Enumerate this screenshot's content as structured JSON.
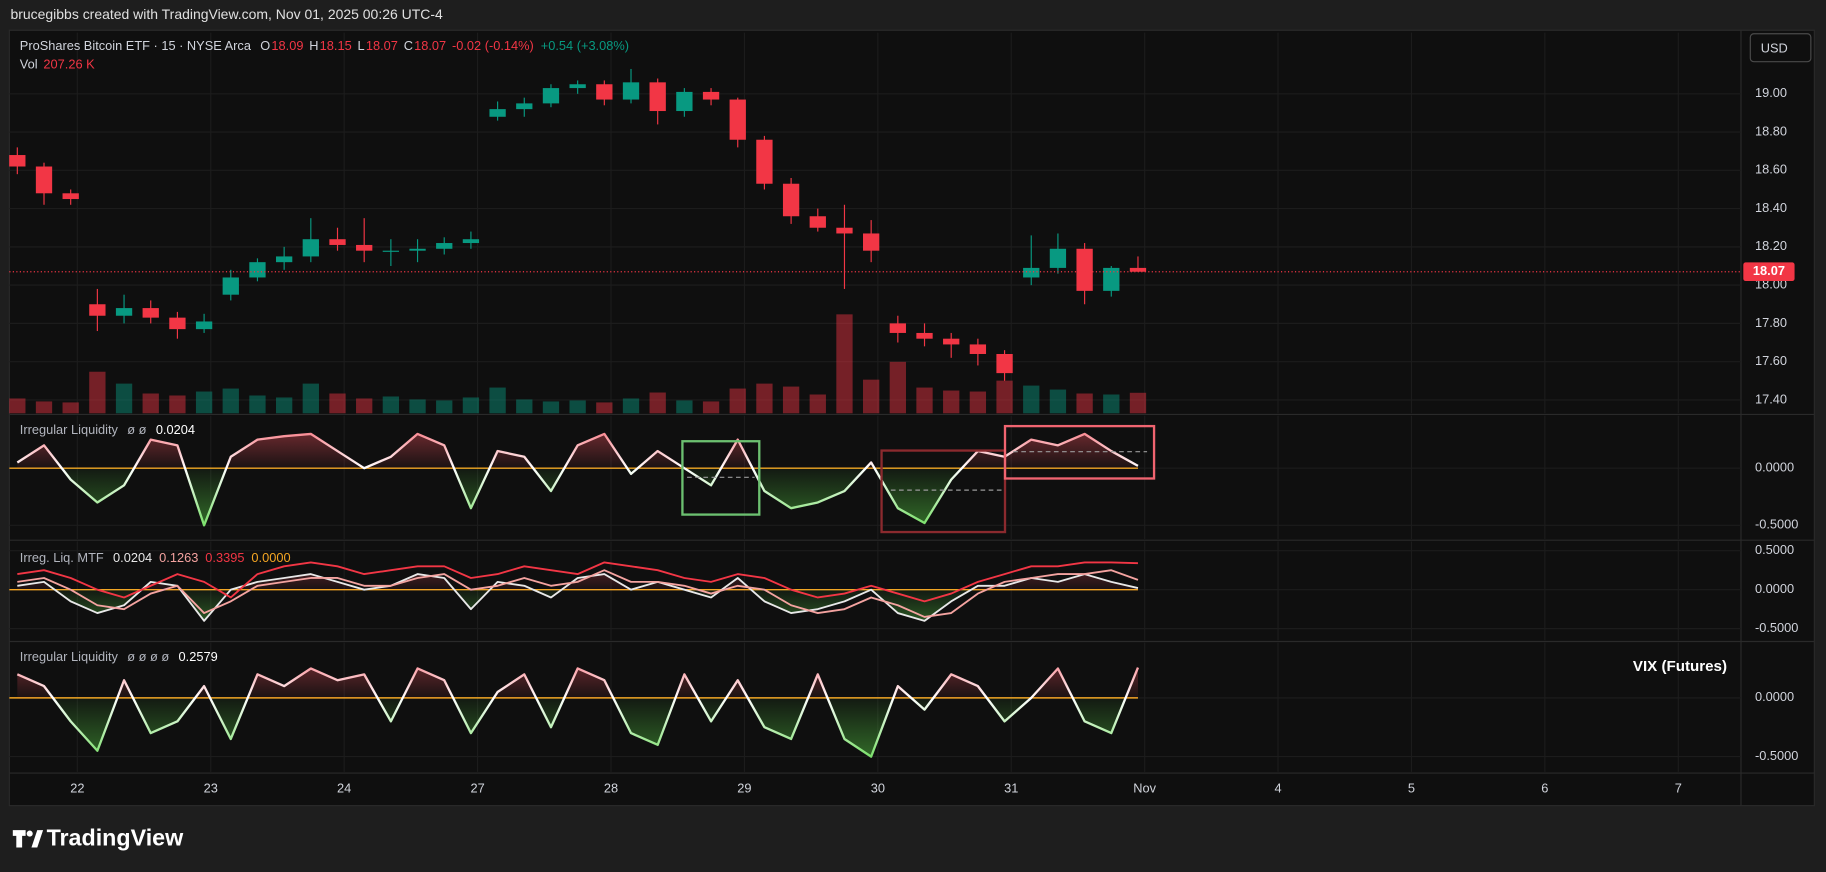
{
  "header": "brucegibbs created with TradingView.com, Nov 01, 2025 00:26 UTC-4",
  "currency_button": "USD",
  "footer_logo": "TradingView",
  "chart_data": [
    {
      "type": "candlestick",
      "title": "ProShares Bitcoin ETF · 15 · NYSE Arca",
      "ohlc_letters": [
        "O",
        "H",
        "L",
        "C"
      ],
      "change": "-0.02 (-0.14%)",
      "extended_change": "+0.54 (+3.08%)",
      "up_color": "#089981",
      "down_color": "#f23645",
      "grid": true,
      "last_price_line": true,
      "xlim": [
        -0.51,
        12.47
      ],
      "xticks": [
        {
          "value": 0,
          "label": "22"
        },
        {
          "value": 1,
          "label": "23"
        },
        {
          "value": 2,
          "label": "24"
        },
        {
          "value": 3,
          "label": "27"
        },
        {
          "value": 4,
          "label": "28"
        },
        {
          "value": 5,
          "label": "29"
        },
        {
          "value": 6,
          "label": "30"
        },
        {
          "value": 7,
          "label": "31"
        },
        {
          "value": 8,
          "label": "Nov"
        },
        {
          "value": 9,
          "label": "4"
        },
        {
          "value": 10,
          "label": "5"
        },
        {
          "value": 11,
          "label": "6"
        },
        {
          "value": 12,
          "label": "7"
        }
      ],
      "ylim": [
        17.33,
        19.32
      ],
      "yticks": [
        {
          "value": 17.4,
          "label": "17.40"
        },
        {
          "value": 17.6,
          "label": "17.60"
        },
        {
          "value": 17.8,
          "label": "17.80"
        },
        {
          "value": 18.0,
          "label": "18.00"
        },
        {
          "value": 18.2,
          "label": "18.20"
        },
        {
          "value": 18.4,
          "label": "18.40"
        },
        {
          "value": 18.6,
          "label": "18.60"
        },
        {
          "value": 18.8,
          "label": "18.80"
        },
        {
          "value": 19.0,
          "label": "19.00"
        }
      ],
      "x": [
        -0.45,
        -0.25,
        -0.05,
        0.15,
        0.35,
        0.55,
        0.75,
        0.95,
        1.15,
        1.35,
        1.55,
        1.75,
        1.95,
        2.15,
        2.35,
        2.55,
        2.75,
        2.95,
        3.15,
        3.35,
        3.55,
        3.75,
        3.95,
        4.15,
        4.35,
        4.55,
        4.75,
        4.95,
        5.15,
        5.35,
        5.55,
        5.75,
        5.95,
        6.15,
        6.35,
        6.55,
        6.75,
        6.95,
        7.15,
        7.35,
        7.55,
        7.75,
        7.95
      ],
      "open": [
        18.68,
        18.62,
        18.48,
        17.9,
        17.84,
        17.88,
        17.83,
        17.77,
        17.95,
        18.04,
        18.12,
        18.15,
        18.24,
        18.21,
        18.18,
        18.18,
        18.19,
        18.22,
        18.88,
        18.92,
        18.95,
        19.03,
        19.05,
        18.97,
        19.06,
        18.91,
        19.01,
        18.97,
        18.76,
        18.53,
        18.36,
        18.3,
        18.27,
        17.8,
        17.75,
        17.72,
        17.69,
        17.64,
        18.04,
        18.09,
        18.19,
        17.97,
        18.09
      ],
      "high": [
        18.72,
        18.64,
        18.5,
        17.98,
        17.95,
        17.92,
        17.86,
        17.85,
        18.08,
        18.14,
        18.2,
        18.35,
        18.3,
        18.35,
        18.24,
        18.24,
        18.25,
        18.28,
        18.96,
        18.98,
        19.05,
        19.07,
        19.07,
        19.13,
        19.08,
        19.03,
        19.03,
        18.98,
        18.78,
        18.56,
        18.4,
        18.42,
        18.34,
        17.84,
        17.8,
        17.75,
        17.72,
        17.66,
        18.26,
        18.27,
        18.22,
        18.1,
        18.15
      ],
      "low": [
        18.58,
        18.42,
        18.42,
        17.76,
        17.8,
        17.8,
        17.72,
        17.75,
        17.92,
        18.02,
        18.08,
        18.12,
        18.18,
        18.12,
        18.1,
        18.12,
        18.16,
        18.19,
        18.86,
        18.88,
        18.93,
        19.0,
        18.94,
        18.95,
        18.84,
        18.88,
        18.94,
        18.72,
        18.5,
        18.32,
        18.28,
        17.98,
        18.12,
        17.7,
        17.68,
        17.62,
        17.58,
        17.5,
        18.0,
        18.06,
        17.9,
        17.94,
        18.07
      ],
      "close": [
        18.62,
        18.48,
        18.45,
        17.84,
        17.88,
        17.83,
        17.77,
        17.81,
        18.04,
        18.12,
        18.15,
        18.24,
        18.21,
        18.18,
        18.18,
        18.19,
        18.22,
        18.24,
        18.92,
        18.95,
        19.03,
        19.05,
        18.97,
        19.06,
        18.91,
        19.01,
        18.97,
        18.76,
        18.53,
        18.36,
        18.3,
        18.27,
        18.18,
        17.75,
        17.72,
        17.69,
        17.64,
        17.54,
        18.09,
        18.19,
        17.97,
        18.09,
        18.07
      ],
      "volume": {
        "label": "Vol",
        "last_label": "207.26 K",
        "values": [
          150,
          120,
          110,
          420,
          300,
          200,
          180,
          220,
          250,
          180,
          160,
          300,
          200,
          150,
          170,
          140,
          130,
          160,
          260,
          140,
          120,
          130,
          110,
          150,
          210,
          130,
          120,
          250,
          300,
          270,
          190,
          1000,
          340,
          520,
          260,
          230,
          220,
          330,
          280,
          240,
          200,
          190,
          207.26
        ]
      }
    },
    {
      "type": "line",
      "title": "Irregular Liquidity",
      "inputs": "ø ø",
      "pos_color": "#f7525f",
      "neg_color": "#5ad846",
      "grid": true,
      "baseline": {
        "value": 0,
        "color": "#f5a623"
      },
      "ylim": [
        -0.62,
        0.46
      ],
      "yticks": [
        {
          "value": -0.5,
          "label": "-0.5000"
        },
        {
          "value": 0,
          "label": "0.0000"
        }
      ],
      "x": [
        -0.45,
        -0.25,
        -0.05,
        0.15,
        0.35,
        0.55,
        0.75,
        0.95,
        1.15,
        1.35,
        1.55,
        1.75,
        1.95,
        2.15,
        2.35,
        2.55,
        2.75,
        2.95,
        3.15,
        3.35,
        3.55,
        3.75,
        3.95,
        4.15,
        4.35,
        4.55,
        4.75,
        4.95,
        5.15,
        5.35,
        5.55,
        5.75,
        5.95,
        6.15,
        6.35,
        6.55,
        6.75,
        6.95,
        7.15,
        7.35,
        7.55,
        7.75,
        7.95
      ],
      "values": [
        0.05,
        0.2,
        -0.1,
        -0.3,
        -0.15,
        0.25,
        0.2,
        -0.5,
        0.1,
        0.25,
        0.28,
        0.3,
        0.15,
        0,
        0.1,
        0.3,
        0.2,
        -0.35,
        0.15,
        0.1,
        -0.2,
        0.2,
        0.3,
        -0.05,
        0.15,
        0,
        -0.15,
        0.25,
        -0.2,
        -0.35,
        -0.3,
        -0.2,
        0.05,
        -0.35,
        -0.48,
        -0.1,
        0.15,
        0.1,
        0.25,
        0.2,
        0.3,
        0.15,
        0.0204
      ]
    },
    {
      "type": "multi-line",
      "title": "Irreg. Liq. MTF",
      "pos_color": "#f7525f",
      "neg_color": "#5ad846",
      "grid": true,
      "baseline": {
        "value": 0,
        "label": "0.0000",
        "color": "#f5a623"
      },
      "ylim": [
        -0.65,
        0.62
      ],
      "yticks": [
        {
          "value": -0.5,
          "label": "-0.5000"
        },
        {
          "value": 0,
          "label": "0.0000"
        },
        {
          "value": 0.5,
          "label": "0.5000"
        }
      ],
      "x": [
        -0.45,
        -0.25,
        -0.05,
        0.15,
        0.35,
        0.55,
        0.75,
        0.95,
        1.15,
        1.35,
        1.55,
        1.75,
        1.95,
        2.15,
        2.35,
        2.55,
        2.75,
        2.95,
        3.15,
        3.35,
        3.55,
        3.75,
        3.95,
        4.15,
        4.35,
        4.55,
        4.75,
        4.95,
        5.15,
        5.35,
        5.55,
        5.75,
        5.95,
        6.15,
        6.35,
        6.55,
        6.75,
        6.95,
        7.15,
        7.35,
        7.55,
        7.75,
        7.95
      ],
      "series": [
        {
          "color": "#e8e8e8",
          "values": [
            0.05,
            0.1,
            -0.15,
            -0.3,
            -0.2,
            0.1,
            0.05,
            -0.4,
            0,
            0.1,
            0.15,
            0.2,
            0.1,
            0,
            0.05,
            0.2,
            0.15,
            -0.25,
            0.1,
            0.05,
            -0.1,
            0.15,
            0.2,
            0,
            0.1,
            0,
            -0.1,
            0.15,
            -0.15,
            -0.3,
            -0.25,
            -0.15,
            0,
            -0.3,
            -0.4,
            -0.15,
            0.05,
            0.05,
            0.15,
            0.1,
            0.2,
            0.1,
            0.0204
          ]
        },
        {
          "color": "#f4a3a0",
          "values": [
            0.1,
            0.15,
            0,
            -0.2,
            -0.25,
            -0.05,
            0.05,
            -0.3,
            -0.15,
            0.05,
            0.1,
            0.15,
            0.15,
            0.05,
            0.05,
            0.15,
            0.2,
            0,
            0.05,
            0.15,
            0.05,
            0.1,
            0.25,
            0.1,
            0.1,
            0.05,
            -0.05,
            0.05,
            0,
            -0.2,
            -0.3,
            -0.25,
            -0.1,
            -0.2,
            -0.35,
            -0.3,
            -0.05,
            0.1,
            0.15,
            0.2,
            0.2,
            0.25,
            0.1263
          ]
        },
        {
          "color": "#f23645",
          "values": [
            0.2,
            0.25,
            0.15,
            0,
            -0.1,
            0.05,
            0.2,
            0.1,
            -0.1,
            0.2,
            0.3,
            0.35,
            0.3,
            0.2,
            0.25,
            0.3,
            0.3,
            0.15,
            0.2,
            0.3,
            0.25,
            0.2,
            0.35,
            0.3,
            0.25,
            0.15,
            0.1,
            0.2,
            0.15,
            0,
            -0.1,
            -0.05,
            0.05,
            -0.05,
            -0.15,
            -0.05,
            0.1,
            0.2,
            0.3,
            0.3,
            0.35,
            0.35,
            0.3395
          ]
        }
      ]
    },
    {
      "type": "line",
      "title": "Irregular Liquidity",
      "inputs": "ø ø ø ø",
      "annotation": "VIX (Futures)",
      "pos_color": "#f7525f",
      "neg_color": "#5ad846",
      "grid": true,
      "baseline": {
        "value": 0,
        "color": "#f5a623"
      },
      "ylim": [
        -0.63,
        0.47
      ],
      "yticks": [
        {
          "value": -0.5,
          "label": "-0.5000"
        },
        {
          "value": 0,
          "label": "0.0000"
        }
      ],
      "x": [
        -0.45,
        -0.25,
        -0.05,
        0.15,
        0.35,
        0.55,
        0.75,
        0.95,
        1.15,
        1.35,
        1.55,
        1.75,
        1.95,
        2.15,
        2.35,
        2.55,
        2.75,
        2.95,
        3.15,
        3.35,
        3.55,
        3.75,
        3.95,
        4.15,
        4.35,
        4.55,
        4.75,
        4.95,
        5.15,
        5.35,
        5.55,
        5.75,
        5.95,
        6.15,
        6.35,
        6.55,
        6.75,
        6.95,
        7.15,
        7.35,
        7.55,
        7.75,
        7.95
      ],
      "values": [
        0.2,
        0.1,
        -0.2,
        -0.45,
        0.15,
        -0.3,
        -0.2,
        0.1,
        -0.35,
        0.2,
        0.1,
        0.25,
        0.15,
        0.2,
        -0.2,
        0.25,
        0.15,
        -0.3,
        0.05,
        0.2,
        -0.25,
        0.25,
        0.15,
        -0.3,
        -0.4,
        0.2,
        -0.2,
        0.15,
        -0.25,
        -0.35,
        0.2,
        -0.35,
        -0.5,
        0.1,
        -0.1,
        0.2,
        0.1,
        -0.2,
        0,
        0.25,
        -0.2,
        -0.3,
        0.2579
      ]
    }
  ]
}
